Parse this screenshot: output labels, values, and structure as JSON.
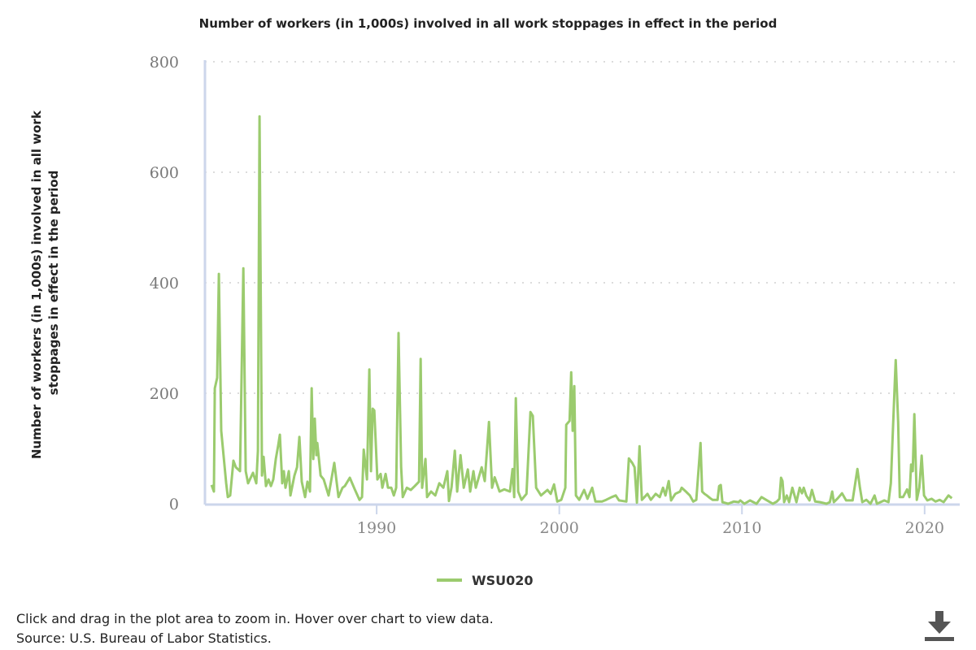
{
  "chart_data": {
    "type": "line",
    "title": "Number of workers (in 1,000s) involved in all work stoppages in effect in the period",
    "ylabel_lines": [
      "Number of workers (in 1,000s) involved in all work",
      "stoppages in effect in the period"
    ],
    "xlabel": "",
    "xlim": [
      1980.6,
      2021.7
    ],
    "ylim": [
      0,
      800
    ],
    "yticks": [
      0,
      200,
      400,
      600,
      800
    ],
    "xticks": [
      1990,
      2000,
      2010,
      2020
    ],
    "grid": "horizontal dotted",
    "legend_position": "bottom-center",
    "color": "#9bcb6e",
    "series": [
      {
        "name": "WSU020",
        "points": [
          [
            1980.96,
            34
          ],
          [
            1981.09,
            22
          ],
          [
            1981.14,
            209
          ],
          [
            1981.27,
            228
          ],
          [
            1981.36,
            416
          ],
          [
            1981.49,
            132
          ],
          [
            1981.76,
            37
          ],
          [
            1981.85,
            12
          ],
          [
            1981.98,
            15
          ],
          [
            1982.16,
            78
          ],
          [
            1982.29,
            66
          ],
          [
            1982.52,
            59
          ],
          [
            1982.7,
            426
          ],
          [
            1982.83,
            59
          ],
          [
            1982.96,
            37
          ],
          [
            1983.23,
            56
          ],
          [
            1983.41,
            37
          ],
          [
            1983.5,
            96
          ],
          [
            1983.59,
            701
          ],
          [
            1983.72,
            51
          ],
          [
            1983.81,
            85
          ],
          [
            1983.94,
            32
          ],
          [
            1984.08,
            44
          ],
          [
            1984.21,
            32
          ],
          [
            1984.34,
            44
          ],
          [
            1984.48,
            81
          ],
          [
            1984.61,
            106
          ],
          [
            1984.7,
            125
          ],
          [
            1984.83,
            37
          ],
          [
            1984.92,
            59
          ],
          [
            1985.01,
            29
          ],
          [
            1985.19,
            59
          ],
          [
            1985.28,
            15
          ],
          [
            1985.5,
            51
          ],
          [
            1985.64,
            66
          ],
          [
            1985.77,
            121
          ],
          [
            1985.9,
            40
          ],
          [
            1986.08,
            12
          ],
          [
            1986.21,
            40
          ],
          [
            1986.35,
            22
          ],
          [
            1986.44,
            209
          ],
          [
            1986.53,
            81
          ],
          [
            1986.61,
            154
          ],
          [
            1986.7,
            88
          ],
          [
            1986.75,
            110
          ],
          [
            1986.93,
            51
          ],
          [
            1987.1,
            44
          ],
          [
            1987.37,
            15
          ],
          [
            1987.68,
            74
          ],
          [
            1987.91,
            12
          ],
          [
            1988.13,
            29
          ],
          [
            1988.26,
            32
          ],
          [
            1988.53,
            47
          ],
          [
            1988.8,
            26
          ],
          [
            1989.06,
            7
          ],
          [
            1989.2,
            12
          ],
          [
            1989.29,
            98
          ],
          [
            1989.47,
            44
          ],
          [
            1989.6,
            243
          ],
          [
            1989.69,
            59
          ],
          [
            1989.78,
            172
          ],
          [
            1989.87,
            169
          ],
          [
            1990.04,
            44
          ],
          [
            1990.22,
            54
          ],
          [
            1990.31,
            29
          ],
          [
            1990.49,
            54
          ],
          [
            1990.62,
            29
          ],
          [
            1990.8,
            29
          ],
          [
            1990.94,
            15
          ],
          [
            1991.07,
            29
          ],
          [
            1991.2,
            309
          ],
          [
            1991.34,
            66
          ],
          [
            1991.43,
            12
          ],
          [
            1991.65,
            29
          ],
          [
            1991.87,
            25
          ],
          [
            1992.09,
            32
          ],
          [
            1992.32,
            40
          ],
          [
            1992.41,
            262
          ],
          [
            1992.49,
            29
          ],
          [
            1992.67,
            81
          ],
          [
            1992.76,
            12
          ],
          [
            1992.98,
            22
          ],
          [
            1993.21,
            15
          ],
          [
            1993.43,
            37
          ],
          [
            1993.65,
            29
          ],
          [
            1993.87,
            59
          ],
          [
            1993.96,
            5
          ],
          [
            1994.1,
            30
          ],
          [
            1994.28,
            96
          ],
          [
            1994.41,
            22
          ],
          [
            1994.59,
            88
          ],
          [
            1994.77,
            29
          ],
          [
            1994.99,
            62
          ],
          [
            1995.12,
            22
          ],
          [
            1995.3,
            59
          ],
          [
            1995.43,
            29
          ],
          [
            1995.75,
            66
          ],
          [
            1995.92,
            41
          ],
          [
            1996.15,
            148
          ],
          [
            1996.32,
            29
          ],
          [
            1996.46,
            48
          ],
          [
            1996.73,
            22
          ],
          [
            1996.99,
            26
          ],
          [
            1997.3,
            22
          ],
          [
            1997.44,
            63
          ],
          [
            1997.53,
            12
          ],
          [
            1997.62,
            191
          ],
          [
            1997.75,
            22
          ],
          [
            1997.93,
            7
          ],
          [
            1998.2,
            18
          ],
          [
            1998.42,
            166
          ],
          [
            1998.55,
            159
          ],
          [
            1998.73,
            29
          ],
          [
            1999.0,
            15
          ],
          [
            1999.35,
            25
          ],
          [
            1999.53,
            18
          ],
          [
            1999.71,
            35
          ],
          [
            1999.89,
            4
          ],
          [
            2000.11,
            7
          ],
          [
            2000.33,
            29
          ],
          [
            2000.38,
            143
          ],
          [
            2000.56,
            150
          ],
          [
            2000.65,
            238
          ],
          [
            2000.73,
            132
          ],
          [
            2000.82,
            213
          ],
          [
            2000.91,
            15
          ],
          [
            2001.09,
            7
          ],
          [
            2001.36,
            25
          ],
          [
            2001.54,
            9
          ],
          [
            2001.8,
            29
          ],
          [
            2001.98,
            4
          ],
          [
            2002.34,
            4
          ],
          [
            2002.56,
            7
          ],
          [
            2002.87,
            12
          ],
          [
            2003.09,
            15
          ],
          [
            2003.27,
            6
          ],
          [
            2003.67,
            4
          ],
          [
            2003.81,
            82
          ],
          [
            2003.99,
            74
          ],
          [
            2004.12,
            66
          ],
          [
            2004.25,
            2
          ],
          [
            2004.39,
            104
          ],
          [
            2004.52,
            7
          ],
          [
            2004.83,
            18
          ],
          [
            2005.01,
            7
          ],
          [
            2005.28,
            18
          ],
          [
            2005.5,
            12
          ],
          [
            2005.68,
            29
          ],
          [
            2005.81,
            15
          ],
          [
            2005.99,
            41
          ],
          [
            2006.12,
            6
          ],
          [
            2006.35,
            18
          ],
          [
            2006.61,
            22
          ],
          [
            2006.7,
            29
          ],
          [
            2006.93,
            22
          ],
          [
            2007.15,
            15
          ],
          [
            2007.33,
            4
          ],
          [
            2007.5,
            7
          ],
          [
            2007.73,
            110
          ],
          [
            2007.82,
            22
          ],
          [
            2007.95,
            18
          ],
          [
            2008.08,
            15
          ],
          [
            2008.26,
            10
          ],
          [
            2008.39,
            7
          ],
          [
            2008.66,
            7
          ],
          [
            2008.75,
            32
          ],
          [
            2008.84,
            34
          ],
          [
            2008.93,
            3
          ],
          [
            2009.24,
            0
          ],
          [
            2009.55,
            4
          ],
          [
            2009.82,
            3
          ],
          [
            2009.91,
            6
          ],
          [
            2010.13,
            0
          ],
          [
            2010.44,
            6
          ],
          [
            2010.8,
            0
          ],
          [
            2011.07,
            12
          ],
          [
            2011.38,
            6
          ],
          [
            2011.69,
            0
          ],
          [
            2011.91,
            4
          ],
          [
            2012.05,
            9
          ],
          [
            2012.14,
            47
          ],
          [
            2012.22,
            41
          ],
          [
            2012.31,
            3
          ],
          [
            2012.45,
            15
          ],
          [
            2012.58,
            3
          ],
          [
            2012.76,
            29
          ],
          [
            2012.85,
            18
          ],
          [
            2012.98,
            3
          ],
          [
            2013.16,
            29
          ],
          [
            2013.29,
            19
          ],
          [
            2013.38,
            29
          ],
          [
            2013.52,
            15
          ],
          [
            2013.7,
            6
          ],
          [
            2013.83,
            25
          ],
          [
            2014.01,
            4
          ],
          [
            2014.27,
            3
          ],
          [
            2014.63,
            0
          ],
          [
            2014.81,
            3
          ],
          [
            2014.94,
            22
          ],
          [
            2015.03,
            3
          ],
          [
            2015.25,
            10
          ],
          [
            2015.48,
            19
          ],
          [
            2015.7,
            6
          ],
          [
            2016.06,
            6
          ],
          [
            2016.32,
            63
          ],
          [
            2016.46,
            29
          ],
          [
            2016.59,
            3
          ],
          [
            2016.81,
            7
          ],
          [
            2017.04,
            0
          ],
          [
            2017.26,
            15
          ],
          [
            2017.39,
            0
          ],
          [
            2017.79,
            6
          ],
          [
            2018.02,
            3
          ],
          [
            2018.15,
            37
          ],
          [
            2018.24,
            113
          ],
          [
            2018.37,
            221
          ],
          [
            2018.42,
            260
          ],
          [
            2018.55,
            147
          ],
          [
            2018.64,
            12
          ],
          [
            2018.82,
            12
          ],
          [
            2019.04,
            26
          ],
          [
            2019.17,
            12
          ],
          [
            2019.26,
            71
          ],
          [
            2019.35,
            59
          ],
          [
            2019.44,
            162
          ],
          [
            2019.57,
            7
          ],
          [
            2019.71,
            29
          ],
          [
            2019.84,
            87
          ],
          [
            2019.97,
            15
          ],
          [
            2020.15,
            6
          ],
          [
            2020.38,
            9
          ],
          [
            2020.6,
            4
          ],
          [
            2020.82,
            7
          ],
          [
            2021.04,
            3
          ],
          [
            2021.31,
            15
          ],
          [
            2021.49,
            10
          ]
        ]
      }
    ]
  },
  "footer": {
    "instructions": "Click and drag in the plot area to zoom in. Hover over chart to view data.",
    "source": "Source: U.S. Bureau of Labor Statistics."
  },
  "icons": {
    "download": "download-icon"
  }
}
